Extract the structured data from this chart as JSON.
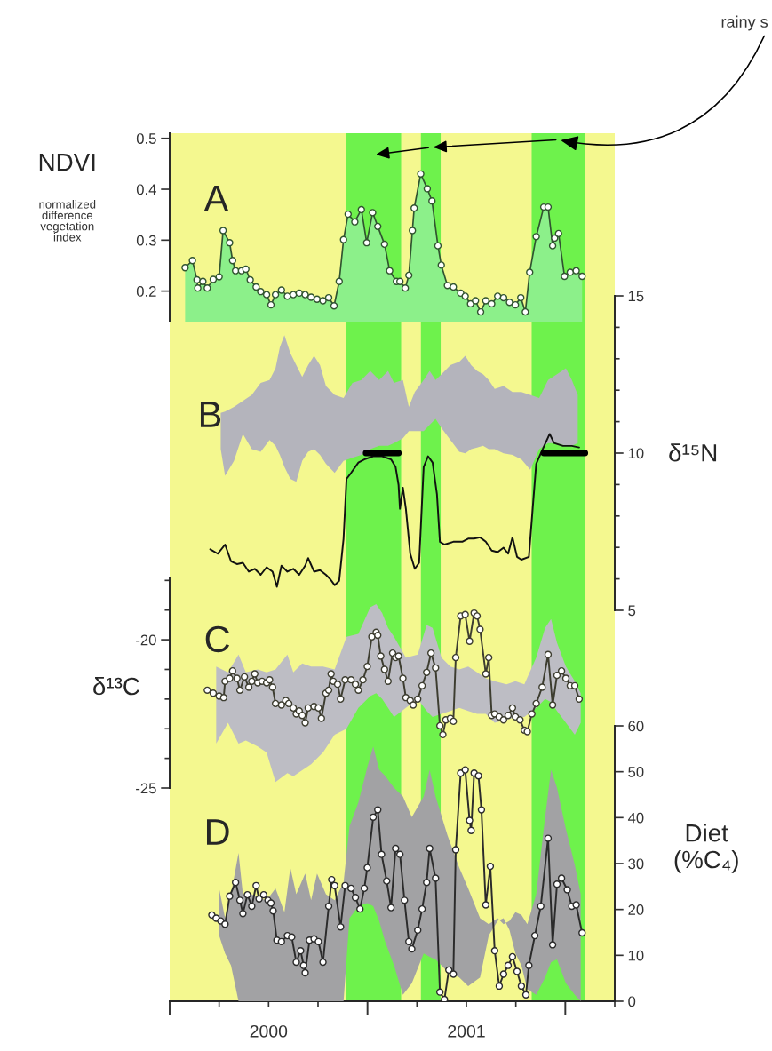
{
  "chart_data": [
    {
      "type": "line",
      "title": "A",
      "ylabel": "NDVI",
      "xlim": [
        2000,
        2002.25
      ],
      "ylim": [
        0.14,
        0.51
      ],
      "yticks": [
        0.2,
        0.3,
        0.4,
        0.5
      ],
      "tick_labels": "y",
      "annotations": [
        "normalized\ndifference\nvegetation\nindex",
        "rainy s"
      ],
      "bands": [
        {
          "axis": "x",
          "from": 2000,
          "to": 2002.25,
          "color": "#f4f88f"
        },
        {
          "axis": "x",
          "from": 2000.89,
          "to": 2001.17,
          "color": "#6ef24c"
        },
        {
          "axis": "x",
          "from": 2001.27,
          "to": 2001.37,
          "color": "#6ef24c"
        },
        {
          "axis": "x",
          "from": 2001.83,
          "to": 2002.1,
          "color": "#6ef24c"
        }
      ],
      "series": [
        {
          "type": "area",
          "color": "#8cf08a",
          "marker": "circle",
          "x": [
            2000.078,
            2000.115,
            2000.138,
            2000.142,
            2000.168,
            2000.19,
            2000.22,
            2000.25,
            2000.27,
            2000.303,
            2000.318,
            2000.333,
            2000.363,
            2000.385,
            2000.407,
            2000.437,
            2000.46,
            2000.49,
            2000.512,
            2000.535,
            2000.565,
            2000.595,
            2000.625,
            2000.655,
            2000.685,
            2000.715,
            2000.745,
            2000.775,
            2000.804,
            2000.831,
            2000.857,
            2000.879,
            2000.902,
            2000.936,
            2000.969,
            2000.996,
            2001.026,
            2001.052,
            2001.086,
            2001.112,
            2001.146,
            2001.164,
            2001.191,
            2001.209,
            2001.227,
            2001.236,
            2001.269,
            2001.302,
            2001.326,
            2001.356,
            2001.373,
            2001.404,
            2001.434,
            2001.471,
            2001.494,
            2001.521,
            2001.546,
            2001.572,
            2001.598,
            2001.628,
            2001.658,
            2001.688,
            2001.718,
            2001.748,
            2001.775,
            2001.798,
            2001.82,
            2001.853,
            2001.891,
            2001.913,
            2001.936,
            2001.946,
            2001.966,
            2001.996,
            2002.025,
            2002.055,
            2002.085
          ],
          "values": [
            0.246,
            0.26,
            0.222,
            0.206,
            0.219,
            0.206,
            0.223,
            0.228,
            0.319,
            0.295,
            0.26,
            0.24,
            0.24,
            0.243,
            0.222,
            0.208,
            0.199,
            0.193,
            0.173,
            0.193,
            0.202,
            0.19,
            0.193,
            0.196,
            0.193,
            0.188,
            0.184,
            0.181,
            0.187,
            0.171,
            0.219,
            0.301,
            0.351,
            0.336,
            0.36,
            0.295,
            0.354,
            0.327,
            0.292,
            0.24,
            0.219,
            0.219,
            0.206,
            0.231,
            0.319,
            0.363,
            0.43,
            0.401,
            0.377,
            0.289,
            0.251,
            0.211,
            0.208,
            0.196,
            0.19,
            0.175,
            0.181,
            0.159,
            0.181,
            0.175,
            0.19,
            0.187,
            0.178,
            0.173,
            0.187,
            0.159,
            0.237,
            0.307,
            0.365,
            0.365,
            0.289,
            0.304,
            0.313,
            0.229,
            0.237,
            0.24,
            0.229
          ]
        }
      ]
    },
    {
      "type": "line",
      "title": "B",
      "y2label": "δ¹⁵N",
      "xlim": [
        2000,
        2002.25
      ],
      "y2lim": [
        5,
        15
      ],
      "y2ticks": [
        5,
        {
          "value": 6,
          "label": null
        },
        {
          "value": 7,
          "label": null
        },
        {
          "value": 8,
          "label": null
        },
        {
          "value": 9,
          "label": null
        },
        10,
        {
          "value": 11,
          "label": null
        },
        {
          "value": 12,
          "label": null
        },
        {
          "value": 13,
          "label": null
        },
        {
          "value": 14,
          "label": null
        },
        15
      ],
      "tick_labels": "y",
      "series": [
        {
          "axis": "y2",
          "color": "#b4b4bc",
          "x": [
            2000.258,
            2000.28,
            2000.325,
            2000.37,
            2000.415,
            2000.46,
            2000.505,
            2000.535,
            2000.557,
            2000.58,
            2000.61,
            2000.64,
            2000.67,
            2000.7,
            2000.73,
            2000.76,
            2000.79,
            2000.834,
            2000.879,
            2000.924,
            2000.969,
            2001.014,
            2001.059,
            2001.104,
            2001.134,
            2001.179,
            2001.209,
            2001.239,
            2001.284,
            2001.314,
            2001.344,
            2001.374,
            2001.419,
            2001.464,
            2001.494,
            2001.524,
            2001.554,
            2001.584,
            2001.613,
            2001.643,
            2001.688,
            2001.733,
            2001.778,
            2001.823,
            2001.868,
            2001.913,
            2001.958,
            2002.003,
            2002.033,
            2002.063
          ],
          "values": [
            null,
            null,
            null,
            null,
            null,
            null,
            null,
            null,
            null,
            null,
            null,
            null,
            null,
            null,
            null,
            null,
            null,
            null,
            null,
            null,
            null,
            null,
            null,
            null,
            null,
            null,
            null,
            null,
            null,
            null,
            null,
            null,
            null,
            null,
            null,
            null,
            null,
            null,
            null,
            null,
            null,
            null,
            null,
            null,
            null,
            null,
            null,
            null,
            null,
            null
          ],
          "upper": [
            11.28,
            11.32,
            11.47,
            11.66,
            11.85,
            12.23,
            12.32,
            12.7,
            13.37,
            13.75,
            13.18,
            12.8,
            12.42,
            12.8,
            13.09,
            12.8,
            12.13,
            11.85,
            11.75,
            12.23,
            12.32,
            12.61,
            12.32,
            12.61,
            12.23,
            12.32,
            11.47,
            11.94,
            12.32,
            12.61,
            12.32,
            12.51,
            12.8,
            12.9,
            13.09,
            12.8,
            12.61,
            12.51,
            12.32,
            12.04,
            12.13,
            11.94,
            11.94,
            11.85,
            11.75,
            12.32,
            12.51,
            12.7,
            12.32,
            11.85
          ],
          "lower": [
            10.13,
            9.28,
            9.75,
            10.61,
            10.13,
            10.04,
            10.42,
            10.23,
            9.94,
            9.56,
            9.18,
            9.09,
            9.75,
            10.04,
            10.13,
            9.94,
            9.66,
            9.37,
            9.75,
            9.85,
            9.94,
            10.13,
            10.23,
            10.23,
            10.32,
            10.47,
            10.7,
            10.7,
            10.7,
            10.9,
            11.09,
            10.8,
            10.42,
            10.04,
            9.99,
            10.13,
            10.18,
            10.23,
            10.13,
            10.13,
            9.99,
            9.94,
            9.8,
            9.47,
            10.13,
            10.32,
            10.32,
            10.23,
            10.23,
            10.32
          ]
        },
        {
          "axis": "y2",
          "color": "#111111",
          "x": [
            2000.205,
            2000.243,
            2000.28,
            2000.31,
            2000.34,
            2000.37,
            2000.4,
            2000.43,
            2000.46,
            2000.49,
            2000.52,
            2000.542,
            2000.565,
            2000.595,
            2000.625,
            2000.655,
            2000.685,
            2000.7,
            2000.73,
            2000.76,
            2000.79,
            2000.812,
            2000.834,
            2000.857,
            2000.879,
            2000.894,
            2000.917,
            2000.954,
            2000.984,
            2001.029,
            2001.074,
            2001.119,
            2001.142,
            2001.157,
            2001.164,
            2001.179,
            2001.194,
            2001.216,
            2001.239,
            2001.261,
            2001.284,
            2001.306,
            2001.329,
            2001.351,
            2001.366,
            2001.389,
            2001.434,
            2001.479,
            2001.509,
            2001.539,
            2001.569,
            2001.598,
            2001.628,
            2001.658,
            2001.688,
            2001.711,
            2001.733,
            2001.756,
            2001.778,
            2001.816,
            2001.835,
            2001.853,
            2001.883,
            2001.921,
            2001.943,
            2001.988,
            2002.033,
            2002.07
          ],
          "values": [
            6.94,
            6.8,
            7.09,
            6.56,
            6.47,
            6.51,
            6.23,
            6.32,
            6.13,
            6.37,
            6.23,
            5.75,
            6.42,
            6.23,
            6.32,
            6.13,
            6.42,
            6.66,
            6.23,
            6.28,
            6.13,
            5.99,
            5.8,
            5.94,
            7.28,
            9.18,
            9.37,
            9.7,
            9.8,
            9.9,
            9.9,
            9.8,
            9.56,
            8.99,
            8.23,
            8.9,
            8.23,
            6.8,
            6.32,
            6.51,
            9.56,
            9.9,
            9.7,
            8.7,
            7.18,
            7.09,
            7.18,
            7.18,
            7.28,
            7.28,
            7.32,
            7.18,
            6.9,
            6.85,
            6.99,
            6.8,
            7.32,
            6.7,
            6.61,
            6.7,
            8.23,
            9.66,
            10.09,
            10.61,
            10.32,
            10.23,
            10.23,
            10.18
          ]
        },
        {
          "axis": "y2",
          "color": "#000000",
          "x": [
            2000.992,
            2001.157,
            2001.5,
            2001.891,
            2002.1
          ],
          "values": [
            10,
            10,
            null,
            10,
            10
          ]
        }
      ]
    },
    {
      "type": "line",
      "title": "C",
      "ylabel": "δ¹³C",
      "xlim": [
        2000,
        2002.25
      ],
      "ylim": [
        -25,
        -17.9
      ],
      "yticks": [
        -25,
        {
          "value": -24,
          "label": null
        },
        {
          "value": -23,
          "label": null
        },
        {
          "value": -22,
          "label": null
        },
        {
          "value": -21,
          "label": null
        },
        -20,
        {
          "value": -19,
          "label": null
        },
        {
          "value": -18,
          "label": null
        }
      ],
      "tick_labels": "y",
      "series": [
        {
          "color": "#bdbdc4",
          "x": [
            2000.235,
            2000.295,
            2000.348,
            2000.385,
            2000.445,
            2000.49,
            2000.535,
            2000.595,
            2000.625,
            2000.67,
            2000.715,
            2000.775,
            2000.834,
            2000.894,
            2000.954,
            2001.014,
            2001.044,
            2001.074,
            2001.104,
            2001.134,
            2001.194,
            2001.254,
            2001.299,
            2001.329,
            2001.374,
            2001.419,
            2001.464,
            2001.509,
            2001.554,
            2001.598,
            2001.643,
            2001.703,
            2001.748,
            2001.793,
            2001.853,
            2001.898,
            2001.928,
            2001.958,
            2002.003,
            2002.048,
            2002.078
          ],
          "values": [
            null,
            null,
            null,
            null,
            null,
            null,
            null,
            null,
            null,
            null,
            null,
            null,
            null,
            null,
            null,
            null,
            null,
            null,
            null,
            null,
            null,
            null,
            null,
            null,
            null,
            null,
            null,
            null,
            null,
            null,
            null,
            null,
            null,
            null,
            null,
            null,
            null,
            null,
            null,
            null,
            null
          ],
          "upper": [
            -20.9,
            -21.1,
            -20.5,
            -21.1,
            -21.0,
            -21.1,
            -21.0,
            -20.5,
            -21.1,
            -20.8,
            -20.9,
            -20.9,
            -21.0,
            -19.9,
            -19.8,
            -18.9,
            -18.8,
            -19.1,
            -19.6,
            -19.9,
            -20.6,
            -20.5,
            -19.5,
            -19.6,
            -20.6,
            -20.9,
            -21.0,
            -20.9,
            -21.1,
            -21.3,
            -21.4,
            -21.5,
            -21.4,
            -21.5,
            -20.6,
            -19.6,
            -19.3,
            -20.1,
            -20.9,
            -21.4,
            -21.8
          ],
          "lower": [
            -23.5,
            -22.8,
            -23.5,
            -23.4,
            -23.6,
            -23.8,
            -24.8,
            -24.5,
            -24.6,
            -24.4,
            -24.2,
            -23.8,
            -23.2,
            -23.0,
            -22.3,
            -21.9,
            -21.8,
            -22.0,
            -22.3,
            -22.6,
            -22.3,
            -22.0,
            -22.4,
            -22.6,
            -22.5,
            -22.4,
            -22.3,
            -22.4,
            -22.5,
            -22.5,
            -22.8,
            -22.7,
            -22.6,
            -22.6,
            -22.3,
            -22.0,
            -22.1,
            -22.4,
            -22.8,
            -23.2,
            -22.8
          ]
        },
        {
          "color": "#3d3d30",
          "marker": "circle",
          "x": [
            2000.19,
            2000.22,
            2000.25,
            2000.273,
            2000.28,
            2000.303,
            2000.318,
            2000.34,
            2000.355,
            2000.378,
            2000.4,
            2000.415,
            2000.43,
            2000.445,
            2000.467,
            2000.49,
            2000.505,
            2000.52,
            2000.535,
            2000.565,
            2000.587,
            2000.602,
            2000.625,
            2000.64,
            2000.655,
            2000.67,
            2000.685,
            2000.7,
            2000.73,
            2000.752,
            2000.767,
            2000.79,
            2000.804,
            2000.816,
            2000.827,
            2000.849,
            2000.864,
            2000.887,
            2000.917,
            2000.939,
            2000.954,
            2000.977,
            2000.999,
            2001.022,
            2001.044,
            2001.052,
            2001.067,
            2001.086,
            2001.104,
            2001.127,
            2001.142,
            2001.157,
            2001.179,
            2001.194,
            2001.216,
            2001.231,
            2001.254,
            2001.276,
            2001.299,
            2001.321,
            2001.344,
            2001.366,
            2001.381,
            2001.396,
            2001.419,
            2001.434,
            2001.446,
            2001.471,
            2001.494,
            2001.516,
            2001.539,
            2001.554,
            2001.569,
            2001.598,
            2001.613,
            2001.628,
            2001.643,
            2001.666,
            2001.688,
            2001.711,
            2001.733,
            2001.748,
            2001.771,
            2001.793,
            2001.808,
            2001.831,
            2001.853,
            2001.883,
            2001.913,
            2001.936,
            2001.958,
            2001.981,
            2002.003,
            2002.025,
            2002.048,
            2002.07
          ],
          "values": [
            -21.7,
            -21.8,
            -21.9,
            -21.95,
            -21.4,
            -21.3,
            -21.05,
            -21.3,
            -21.7,
            -21.25,
            -21.6,
            -21.4,
            -21.15,
            -21.45,
            -21.4,
            -21.45,
            -21.35,
            -21.6,
            -22.15,
            -22.2,
            -22.05,
            -22.15,
            -22.3,
            -22.5,
            -22.4,
            -22.55,
            -22.8,
            -22.3,
            -22.25,
            -22.3,
            -22.65,
            -21.8,
            -21.7,
            -21.15,
            -21.4,
            -21.5,
            -22.0,
            -21.35,
            -21.35,
            -21.5,
            -21.7,
            -21.35,
            -20.9,
            -19.9,
            -19.75,
            -19.85,
            -20.55,
            -21.0,
            -21.4,
            -20.45,
            -20.6,
            -20.55,
            -21.3,
            -21.95,
            -22.05,
            -22.2,
            -22.0,
            -21.55,
            -21.1,
            -20.45,
            -20.95,
            -22.9,
            -23.2,
            -22.7,
            -22.65,
            -22.75,
            -20.6,
            -19.2,
            -19.15,
            -20.05,
            -19.1,
            -19.2,
            -19.65,
            -21.15,
            -20.6,
            -22.55,
            -22.5,
            -22.6,
            -22.7,
            -22.55,
            -22.3,
            -22.6,
            -22.7,
            -23.05,
            -23.1,
            -22.5,
            -22.15,
            -21.6,
            -20.5,
            -22.2,
            -21.2,
            -21.05,
            -21.3,
            -21.55,
            -21.55,
            -22.0
          ]
        }
      ]
    },
    {
      "type": "line",
      "title": "D",
      "y2label": "Diet\n(%C₄)",
      "xlim": [
        2000,
        2002.25
      ],
      "y2lim": [
        0,
        60
      ],
      "y2ticks": [
        0,
        10,
        20,
        30,
        40,
        50,
        60
      ],
      "xticks": [
        {
          "value": 2000,
          "label": null
        },
        {
          "value": 2000.25,
          "label": null
        },
        {
          "value": 2000.5,
          "label": "2000"
        },
        {
          "value": 2000.75,
          "label": null
        },
        {
          "value": 2001,
          "label": null
        },
        {
          "value": 2001.25,
          "label": null
        },
        {
          "value": 2001.5,
          "label": "2001"
        },
        {
          "value": 2001.75,
          "label": null
        },
        {
          "value": 2002,
          "label": null
        },
        {
          "value": 2002.25,
          "label": null
        }
      ],
      "series": [
        {
          "axis": "y2",
          "color": "#a2a2a4",
          "x": [
            2000.25,
            2000.28,
            2000.31,
            2000.348,
            2000.37,
            2000.415,
            2000.445,
            2000.49,
            2000.535,
            2000.58,
            2000.61,
            2000.64,
            2000.685,
            2000.715,
            2000.745,
            2000.79,
            2000.834,
            2000.879,
            2000.909,
            2000.954,
            2000.999,
            2001.029,
            2001.059,
            2001.089,
            2001.134,
            2001.179,
            2001.224,
            2001.284,
            2001.314,
            2001.344,
            2001.404,
            2001.464,
            2001.509,
            2001.569,
            2001.613,
            2001.658,
            2001.688,
            2001.718,
            2001.748,
            2001.778,
            2001.808,
            2001.853,
            2001.898,
            2001.928,
            2001.958,
            2002.003,
            2002.048,
            2002.078
          ],
          "values": [
            null,
            null,
            null,
            null,
            null,
            null,
            null,
            null,
            null,
            null,
            null,
            null,
            null,
            null,
            null,
            null,
            null,
            null,
            null,
            null,
            null,
            null,
            null,
            null,
            null,
            null,
            null,
            null,
            null,
            null,
            null,
            null,
            null,
            null,
            null,
            null,
            null,
            null,
            null,
            null,
            null,
            null,
            null,
            null,
            null,
            null,
            null,
            null
          ],
          "upper": [
            24.6,
            18.1,
            23.3,
            32.3,
            23.3,
            23.3,
            22.6,
            22.0,
            24.6,
            19.4,
            29.1,
            23.3,
            27.8,
            22.0,
            27.8,
            23.3,
            22.0,
            25.9,
            38.1,
            43.3,
            51.0,
            55.5,
            50.4,
            49.1,
            46.5,
            44.6,
            40.1,
            44.6,
            50.4,
            44.6,
            36.2,
            29.1,
            24.6,
            18.1,
            16.8,
            18.1,
            16.8,
            17.5,
            19.4,
            18.8,
            16.8,
            23.3,
            40.1,
            50.4,
            46.5,
            37.5,
            29.7,
            23.3
          ],
          "lower": [
            14.3,
            10.4,
            7.8,
            0,
            0,
            0,
            0,
            0,
            0,
            0,
            0,
            0,
            0,
            0,
            0,
            0,
            0,
            0,
            18.1,
            20.7,
            21.4,
            20.7,
            17.5,
            13.0,
            7.8,
            1.4,
            3.9,
            10.4,
            9.7,
            9.1,
            6.5,
            5.2,
            3.3,
            5.2,
            14.3,
            17.5,
            18.1,
            15.5,
            10.4,
            7.8,
            2.6,
            1.4,
            5.2,
            8.5,
            9.1,
            3.9,
            1.4,
            0
          ]
        },
        {
          "axis": "y2",
          "color": "#2b2b2b",
          "marker": "circle",
          "x": [
            2000.213,
            2000.235,
            2000.258,
            2000.28,
            2000.303,
            2000.333,
            2000.355,
            2000.37,
            2000.393,
            2000.415,
            2000.437,
            2000.452,
            2000.475,
            2000.497,
            2000.512,
            2000.523,
            2000.542,
            2000.565,
            2000.595,
            2000.617,
            2000.64,
            2000.662,
            2000.677,
            2000.685,
            2000.707,
            2000.73,
            2000.752,
            2000.775,
            2000.804,
            2000.819,
            2000.834,
            2000.864,
            2000.887,
            2000.917,
            2000.939,
            2000.962,
            2000.984,
            2000.999,
            2001.029,
            2001.052,
            2001.071,
            2001.097,
            2001.119,
            2001.142,
            2001.164,
            2001.187,
            2001.209,
            2001.224,
            2001.254,
            2001.276,
            2001.299,
            2001.314,
            2001.344,
            2001.366,
            2001.389,
            2001.411,
            2001.434,
            2001.446,
            2001.471,
            2001.494,
            2001.516,
            2001.524,
            2001.539,
            2001.561,
            2001.576,
            2001.598,
            2001.621,
            2001.643,
            2001.666,
            2001.688,
            2001.711,
            2001.733,
            2001.756,
            2001.778,
            2001.801,
            2001.816,
            2001.846,
            2001.876,
            2001.913,
            2001.936,
            2001.958,
            2001.981,
            2002.01,
            2002.033,
            2002.055,
            2002.085
          ],
          "values": [
            18.8,
            18.1,
            17.5,
            16.8,
            22.9,
            25.9,
            22.0,
            19.1,
            23.2,
            20.7,
            25.2,
            22.3,
            23.2,
            22.0,
            21.4,
            19.7,
            13.3,
            13.0,
            14.3,
            14.0,
            8.5,
            11.0,
            7.8,
            6.2,
            13.3,
            13.6,
            13.0,
            8.5,
            20.7,
            26.5,
            25.2,
            16.2,
            25.2,
            24.6,
            22.6,
            20.1,
            24.6,
            29.1,
            40.1,
            41.7,
            32.0,
            26.2,
            20.4,
            33.3,
            32.0,
            22.0,
            13.0,
            11.4,
            15.5,
            20.1,
            25.9,
            33.3,
            26.8,
            2.0,
            0.4,
            6.8,
            5.9,
            33.0,
            49.7,
            50.4,
            39.4,
            37.2,
            49.7,
            49.1,
            41.7,
            21.0,
            29.4,
            11.0,
            3.3,
            5.9,
            7.8,
            9.7,
            6.5,
            3.3,
            1.4,
            7.8,
            14.3,
            20.7,
            35.5,
            12.3,
            25.5,
            26.8,
            24.3,
            20.7,
            21.0,
            14.9
          ]
        }
      ]
    }
  ]
}
